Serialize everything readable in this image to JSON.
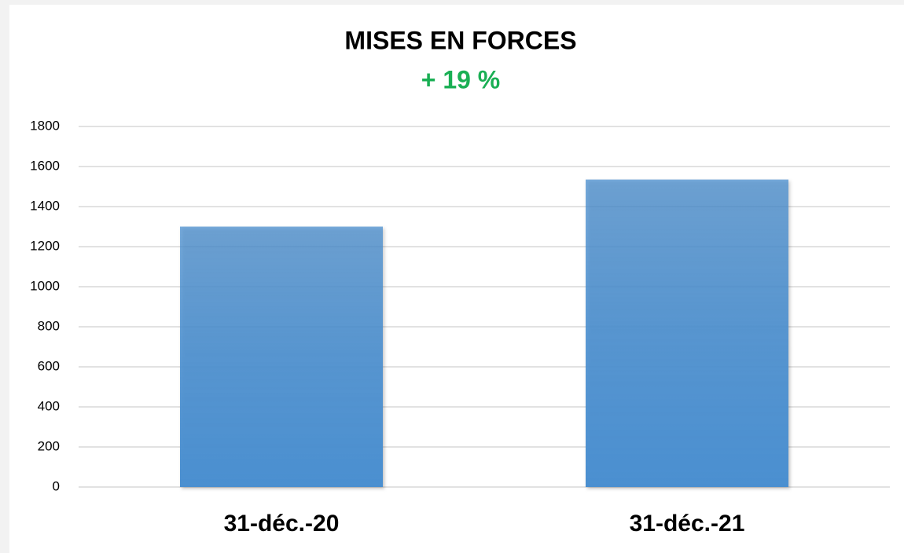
{
  "chart_data": {
    "type": "bar",
    "title": "MISES EN FORCES",
    "subtitle": "+ 19 %",
    "categories": [
      "31-déc.-20",
      "31-déc.-21"
    ],
    "values": [
      1300,
      1535
    ],
    "color": "#4a8fd0",
    "ylim": [
      0,
      1800
    ],
    "yticks": [
      0,
      200,
      400,
      600,
      800,
      1000,
      1200,
      1400,
      1600,
      1800
    ],
    "grid": true
  }
}
